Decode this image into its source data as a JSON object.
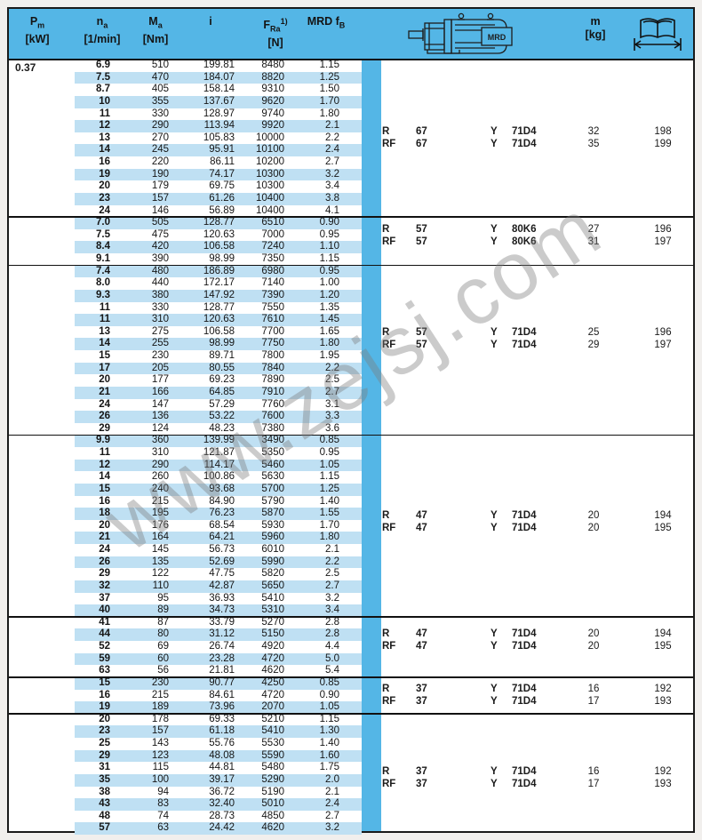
{
  "page": {
    "watermark": "www.zejsj.com"
  },
  "colors": {
    "blue": "#54b6e6",
    "row_shade": "#bfe0f3",
    "ink": "#1b1b1b"
  },
  "header": {
    "pm": {
      "main": "P",
      "sub": "m",
      "unit": "[kW]"
    },
    "na": {
      "main": "n",
      "sub": "a",
      "unit": "[1/min]"
    },
    "ma": {
      "main": "M",
      "sub": "a",
      "unit": "[Nm]"
    },
    "i": {
      "main": "i",
      "unit": ""
    },
    "fra": {
      "main": "F",
      "sub": "Ra",
      "sup": "1)",
      "unit": "[N]"
    },
    "mrd": {
      "main": "MRD f",
      "sub": "B"
    },
    "m": {
      "main": "m",
      "unit": "[kg]"
    },
    "motor_brand": "MRD",
    "motor_icon": "gearmotor-drawing",
    "book_icon": "dimensions-page-reference"
  },
  "pm_value": "0.37",
  "table": {
    "row_columns": [
      "na",
      "Ma",
      "i",
      "FRa",
      "fB"
    ],
    "motor_columns": [
      "gear type",
      "gear size",
      "Y",
      "motor",
      "m",
      "page"
    ],
    "blocks": [
      {
        "rows": [
          [
            "6.9",
            "510",
            "199.81",
            "8480",
            "1.15"
          ],
          [
            "7.5",
            "470",
            "184.07",
            "8820",
            "1.25"
          ],
          [
            "8.7",
            "405",
            "158.14",
            "9310",
            "1.50"
          ],
          [
            "10",
            "355",
            "137.67",
            "9620",
            "1.70"
          ],
          [
            "11",
            "330",
            "128.97",
            "9740",
            "1.80"
          ],
          [
            "12",
            "290",
            "113.94",
            "9920",
            "2.1"
          ],
          [
            "13",
            "270",
            "105.83",
            "10000",
            "2.2"
          ],
          [
            "14",
            "245",
            "95.91",
            "10100",
            "2.4"
          ],
          [
            "16",
            "220",
            "86.11",
            "10200",
            "2.7"
          ],
          [
            "19",
            "190",
            "74.17",
            "10300",
            "3.2"
          ],
          [
            "20",
            "179",
            "69.75",
            "10300",
            "3.4"
          ],
          [
            "23",
            "157",
            "61.26",
            "10400",
            "3.8"
          ],
          [
            "24",
            "146",
            "56.89",
            "10400",
            "4.1"
          ]
        ],
        "motor": [
          [
            "R",
            "67",
            "Y",
            "71D4",
            "32",
            "198"
          ],
          [
            "RF",
            "67",
            "Y",
            "71D4",
            "35",
            "199"
          ]
        ]
      },
      {
        "rows": [
          [
            "7.0",
            "505",
            "128.77",
            "6510",
            "0.90"
          ],
          [
            "7.5",
            "475",
            "120.63",
            "7000",
            "0.95"
          ],
          [
            "8.4",
            "420",
            "106.58",
            "7240",
            "1.10"
          ],
          [
            "9.1",
            "390",
            "98.99",
            "7350",
            "1.15"
          ]
        ],
        "motor": [
          [
            "R",
            "57",
            "Y",
            "80K6",
            "27",
            "196"
          ],
          [
            "RF",
            "57",
            "Y",
            "80K6",
            "31",
            "197"
          ]
        ]
      },
      {
        "rows": [
          [
            "7.4",
            "480",
            "186.89",
            "6980",
            "0.95"
          ],
          [
            "8.0",
            "440",
            "172.17",
            "7140",
            "1.00"
          ],
          [
            "9.3",
            "380",
            "147.92",
            "7390",
            "1.20"
          ],
          [
            "11",
            "330",
            "128.77",
            "7550",
            "1.35"
          ],
          [
            "11",
            "310",
            "120.63",
            "7610",
            "1.45"
          ],
          [
            "13",
            "275",
            "106.58",
            "7700",
            "1.65"
          ],
          [
            "14",
            "255",
            "98.99",
            "7750",
            "1.80"
          ],
          [
            "15",
            "230",
            "89.71",
            "7800",
            "1.95"
          ],
          [
            "17",
            "205",
            "80.55",
            "7840",
            "2.2"
          ],
          [
            "20",
            "177",
            "69.23",
            "7890",
            "2.5"
          ],
          [
            "21",
            "166",
            "64.85",
            "7910",
            "2.7"
          ],
          [
            "24",
            "147",
            "57.29",
            "7760",
            "3.1"
          ],
          [
            "26",
            "136",
            "53.22",
            "7600",
            "3.3"
          ],
          [
            "29",
            "124",
            "48.23",
            "7380",
            "3.6"
          ]
        ],
        "motor": [
          [
            "R",
            "57",
            "Y",
            "71D4",
            "25",
            "196"
          ],
          [
            "RF",
            "57",
            "Y",
            "71D4",
            "29",
            "197"
          ]
        ]
      },
      {
        "rows": [
          [
            "9.9",
            "360",
            "139.99",
            "3490",
            "0.85"
          ],
          [
            "11",
            "310",
            "121.87",
            "5350",
            "0.95"
          ],
          [
            "12",
            "290",
            "114.17",
            "5460",
            "1.05"
          ],
          [
            "14",
            "260",
            "100.86",
            "5630",
            "1.15"
          ],
          [
            "15",
            "240",
            "93.68",
            "5700",
            "1.25"
          ],
          [
            "16",
            "215",
            "84.90",
            "5790",
            "1.40"
          ],
          [
            "18",
            "195",
            "76.23",
            "5870",
            "1.55"
          ],
          [
            "20",
            "176",
            "68.54",
            "5930",
            "1.70"
          ],
          [
            "21",
            "164",
            "64.21",
            "5960",
            "1.80"
          ],
          [
            "24",
            "145",
            "56.73",
            "6010",
            "2.1"
          ],
          [
            "26",
            "135",
            "52.69",
            "5990",
            "2.2"
          ],
          [
            "29",
            "122",
            "47.75",
            "5820",
            "2.5"
          ],
          [
            "32",
            "110",
            "42.87",
            "5650",
            "2.7"
          ],
          [
            "37",
            "95",
            "36.93",
            "5410",
            "3.2"
          ],
          [
            "40",
            "89",
            "34.73",
            "5310",
            "3.4"
          ]
        ],
        "motor": [
          [
            "R",
            "47",
            "Y",
            "71D4",
            "20",
            "194"
          ],
          [
            "RF",
            "47",
            "Y",
            "71D4",
            "20",
            "195"
          ]
        ]
      },
      {
        "rows": [
          [
            "41",
            "87",
            "33.79",
            "5270",
            "2.8"
          ],
          [
            "44",
            "80",
            "31.12",
            "5150",
            "2.8"
          ],
          [
            "52",
            "69",
            "26.74",
            "4920",
            "4.4"
          ],
          [
            "59",
            "60",
            "23.28",
            "4720",
            "5.0"
          ],
          [
            "63",
            "56",
            "21.81",
            "4620",
            "5.4"
          ]
        ],
        "motor": [
          [
            "R",
            "47",
            "Y",
            "71D4",
            "20",
            "194"
          ],
          [
            "RF",
            "47",
            "Y",
            "71D4",
            "20",
            "195"
          ]
        ]
      },
      {
        "rows": [
          [
            "15",
            "230",
            "90.77",
            "4250",
            "0.85"
          ],
          [
            "16",
            "215",
            "84.61",
            "4720",
            "0.90"
          ],
          [
            "19",
            "189",
            "73.96",
            "2070",
            "1.05"
          ]
        ],
        "motor": [
          [
            "R",
            "37",
            "Y",
            "71D4",
            "16",
            "192"
          ],
          [
            "RF",
            "37",
            "Y",
            "71D4",
            "17",
            "193"
          ]
        ]
      },
      {
        "rows": [
          [
            "20",
            "178",
            "69.33",
            "5210",
            "1.15"
          ],
          [
            "23",
            "157",
            "61.18",
            "5410",
            "1.30"
          ],
          [
            "25",
            "143",
            "55.76",
            "5530",
            "1.40"
          ],
          [
            "29",
            "123",
            "48.08",
            "5590",
            "1.60"
          ],
          [
            "31",
            "115",
            "44.81",
            "5480",
            "1.75"
          ],
          [
            "35",
            "100",
            "39.17",
            "5290",
            "2.0"
          ],
          [
            "38",
            "94",
            "36.72",
            "5190",
            "2.1"
          ],
          [
            "43",
            "83",
            "32.40",
            "5010",
            "2.4"
          ],
          [
            "48",
            "74",
            "28.73",
            "4850",
            "2.7"
          ],
          [
            "57",
            "63",
            "24.42",
            "4620",
            "3.2"
          ]
        ],
        "motor": [
          [
            "R",
            "37",
            "Y",
            "71D4",
            "16",
            "192"
          ],
          [
            "RF",
            "37",
            "Y",
            "71D4",
            "17",
            "193"
          ]
        ]
      }
    ]
  }
}
